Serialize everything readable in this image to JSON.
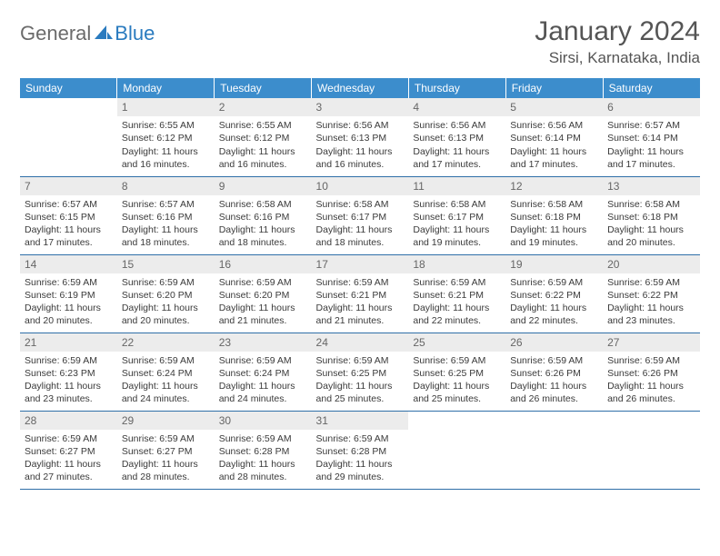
{
  "logo": {
    "general": "General",
    "blue": "Blue"
  },
  "title": "January 2024",
  "location": "Sirsi, Karnataka, India",
  "colors": {
    "header_bg": "#3c8dcc",
    "header_text": "#ffffff",
    "daynum_bg": "#ececec",
    "border": "#2f6fa8",
    "logo_blue": "#2a7bbf"
  },
  "weekdays": [
    "Sunday",
    "Monday",
    "Tuesday",
    "Wednesday",
    "Thursday",
    "Friday",
    "Saturday"
  ],
  "weeks": [
    [
      {
        "n": "",
        "lines": []
      },
      {
        "n": "1",
        "lines": [
          "Sunrise: 6:55 AM",
          "Sunset: 6:12 PM",
          "Daylight: 11 hours and 16 minutes."
        ]
      },
      {
        "n": "2",
        "lines": [
          "Sunrise: 6:55 AM",
          "Sunset: 6:12 PM",
          "Daylight: 11 hours and 16 minutes."
        ]
      },
      {
        "n": "3",
        "lines": [
          "Sunrise: 6:56 AM",
          "Sunset: 6:13 PM",
          "Daylight: 11 hours and 16 minutes."
        ]
      },
      {
        "n": "4",
        "lines": [
          "Sunrise: 6:56 AM",
          "Sunset: 6:13 PM",
          "Daylight: 11 hours and 17 minutes."
        ]
      },
      {
        "n": "5",
        "lines": [
          "Sunrise: 6:56 AM",
          "Sunset: 6:14 PM",
          "Daylight: 11 hours and 17 minutes."
        ]
      },
      {
        "n": "6",
        "lines": [
          "Sunrise: 6:57 AM",
          "Sunset: 6:14 PM",
          "Daylight: 11 hours and 17 minutes."
        ]
      }
    ],
    [
      {
        "n": "7",
        "lines": [
          "Sunrise: 6:57 AM",
          "Sunset: 6:15 PM",
          "Daylight: 11 hours and 17 minutes."
        ]
      },
      {
        "n": "8",
        "lines": [
          "Sunrise: 6:57 AM",
          "Sunset: 6:16 PM",
          "Daylight: 11 hours and 18 minutes."
        ]
      },
      {
        "n": "9",
        "lines": [
          "Sunrise: 6:58 AM",
          "Sunset: 6:16 PM",
          "Daylight: 11 hours and 18 minutes."
        ]
      },
      {
        "n": "10",
        "lines": [
          "Sunrise: 6:58 AM",
          "Sunset: 6:17 PM",
          "Daylight: 11 hours and 18 minutes."
        ]
      },
      {
        "n": "11",
        "lines": [
          "Sunrise: 6:58 AM",
          "Sunset: 6:17 PM",
          "Daylight: 11 hours and 19 minutes."
        ]
      },
      {
        "n": "12",
        "lines": [
          "Sunrise: 6:58 AM",
          "Sunset: 6:18 PM",
          "Daylight: 11 hours and 19 minutes."
        ]
      },
      {
        "n": "13",
        "lines": [
          "Sunrise: 6:58 AM",
          "Sunset: 6:18 PM",
          "Daylight: 11 hours and 20 minutes."
        ]
      }
    ],
    [
      {
        "n": "14",
        "lines": [
          "Sunrise: 6:59 AM",
          "Sunset: 6:19 PM",
          "Daylight: 11 hours and 20 minutes."
        ]
      },
      {
        "n": "15",
        "lines": [
          "Sunrise: 6:59 AM",
          "Sunset: 6:20 PM",
          "Daylight: 11 hours and 20 minutes."
        ]
      },
      {
        "n": "16",
        "lines": [
          "Sunrise: 6:59 AM",
          "Sunset: 6:20 PM",
          "Daylight: 11 hours and 21 minutes."
        ]
      },
      {
        "n": "17",
        "lines": [
          "Sunrise: 6:59 AM",
          "Sunset: 6:21 PM",
          "Daylight: 11 hours and 21 minutes."
        ]
      },
      {
        "n": "18",
        "lines": [
          "Sunrise: 6:59 AM",
          "Sunset: 6:21 PM",
          "Daylight: 11 hours and 22 minutes."
        ]
      },
      {
        "n": "19",
        "lines": [
          "Sunrise: 6:59 AM",
          "Sunset: 6:22 PM",
          "Daylight: 11 hours and 22 minutes."
        ]
      },
      {
        "n": "20",
        "lines": [
          "Sunrise: 6:59 AM",
          "Sunset: 6:22 PM",
          "Daylight: 11 hours and 23 minutes."
        ]
      }
    ],
    [
      {
        "n": "21",
        "lines": [
          "Sunrise: 6:59 AM",
          "Sunset: 6:23 PM",
          "Daylight: 11 hours and 23 minutes."
        ]
      },
      {
        "n": "22",
        "lines": [
          "Sunrise: 6:59 AM",
          "Sunset: 6:24 PM",
          "Daylight: 11 hours and 24 minutes."
        ]
      },
      {
        "n": "23",
        "lines": [
          "Sunrise: 6:59 AM",
          "Sunset: 6:24 PM",
          "Daylight: 11 hours and 24 minutes."
        ]
      },
      {
        "n": "24",
        "lines": [
          "Sunrise: 6:59 AM",
          "Sunset: 6:25 PM",
          "Daylight: 11 hours and 25 minutes."
        ]
      },
      {
        "n": "25",
        "lines": [
          "Sunrise: 6:59 AM",
          "Sunset: 6:25 PM",
          "Daylight: 11 hours and 25 minutes."
        ]
      },
      {
        "n": "26",
        "lines": [
          "Sunrise: 6:59 AM",
          "Sunset: 6:26 PM",
          "Daylight: 11 hours and 26 minutes."
        ]
      },
      {
        "n": "27",
        "lines": [
          "Sunrise: 6:59 AM",
          "Sunset: 6:26 PM",
          "Daylight: 11 hours and 26 minutes."
        ]
      }
    ],
    [
      {
        "n": "28",
        "lines": [
          "Sunrise: 6:59 AM",
          "Sunset: 6:27 PM",
          "Daylight: 11 hours and 27 minutes."
        ]
      },
      {
        "n": "29",
        "lines": [
          "Sunrise: 6:59 AM",
          "Sunset: 6:27 PM",
          "Daylight: 11 hours and 28 minutes."
        ]
      },
      {
        "n": "30",
        "lines": [
          "Sunrise: 6:59 AM",
          "Sunset: 6:28 PM",
          "Daylight: 11 hours and 28 minutes."
        ]
      },
      {
        "n": "31",
        "lines": [
          "Sunrise: 6:59 AM",
          "Sunset: 6:28 PM",
          "Daylight: 11 hours and 29 minutes."
        ]
      },
      {
        "n": "",
        "lines": []
      },
      {
        "n": "",
        "lines": []
      },
      {
        "n": "",
        "lines": []
      }
    ]
  ]
}
